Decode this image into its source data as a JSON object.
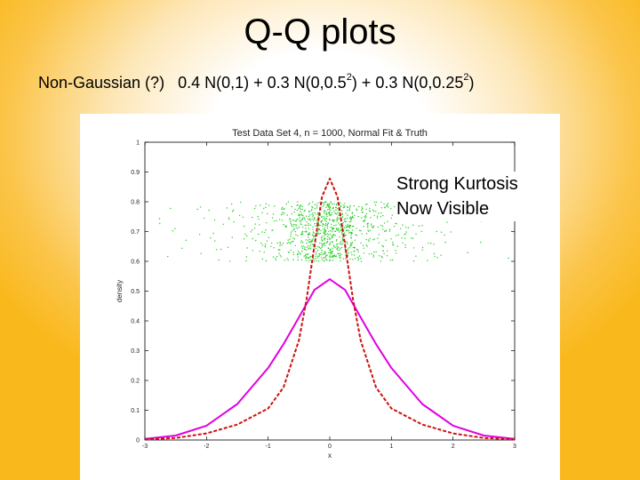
{
  "slide": {
    "title": "Q-Q plots",
    "subtitle": {
      "prefix": "Non-Gaussian (?)",
      "p1": "0.4 N(0,1) + 0.3 N(0,0.5",
      "e1": "2",
      "p2": ") + 0.3 N(0,0.25",
      "e2": "2",
      "p3": ")"
    },
    "annotation": [
      "Strong Kurtosis",
      "Now Visible"
    ]
  },
  "chart_data": {
    "type": "line",
    "title": "Test Data Set 4, n = 1000, Normal Fit & Truth",
    "xlabel": "x",
    "ylabel": "density",
    "xlim": [
      -3,
      3
    ],
    "ylim": [
      0,
      1
    ],
    "xticks": [
      -3,
      -2,
      -1,
      0,
      1,
      2,
      3
    ],
    "yticks": [
      0,
      0.1,
      0.2,
      0.3,
      0.4,
      0.5,
      0.6,
      0.7,
      0.8,
      0.9,
      1
    ],
    "series": [
      {
        "role": "normal-fit",
        "style": "solid",
        "color": "#e000e0",
        "x": [
          -3,
          -2.5,
          -2,
          -1.5,
          -1,
          -0.75,
          -0.5,
          -0.25,
          0,
          0.25,
          0.5,
          0.75,
          1,
          1.5,
          2,
          2.5,
          3
        ],
        "y": [
          0.0036,
          0.015,
          0.048,
          0.121,
          0.242,
          0.322,
          0.412,
          0.504,
          0.54,
          0.504,
          0.412,
          0.322,
          0.242,
          0.121,
          0.048,
          0.015,
          0.0036
        ]
      },
      {
        "role": "truth",
        "style": "dashed",
        "color": "#cc1111",
        "x": [
          -3,
          -2.5,
          -2,
          -1.5,
          -1,
          -0.75,
          -0.5,
          -0.375,
          -0.25,
          -0.125,
          0,
          0.125,
          0.25,
          0.375,
          0.5,
          0.75,
          1,
          1.5,
          2,
          2.5,
          3
        ],
        "y": [
          0.0018,
          0.007,
          0.022,
          0.052,
          0.106,
          0.177,
          0.335,
          0.475,
          0.652,
          0.817,
          0.878,
          0.817,
          0.652,
          0.475,
          0.335,
          0.177,
          0.106,
          0.052,
          0.022,
          0.007,
          0.0018
        ]
      }
    ],
    "scatter": {
      "role": "data-points",
      "color": "#22cc22",
      "n": 1000,
      "y_range": [
        0.6,
        0.8
      ],
      "x_mixture": [
        {
          "weight": 0.4,
          "sd": 1
        },
        {
          "weight": 0.3,
          "sd": 0.5
        },
        {
          "weight": 0.3,
          "sd": 0.25
        }
      ]
    }
  }
}
